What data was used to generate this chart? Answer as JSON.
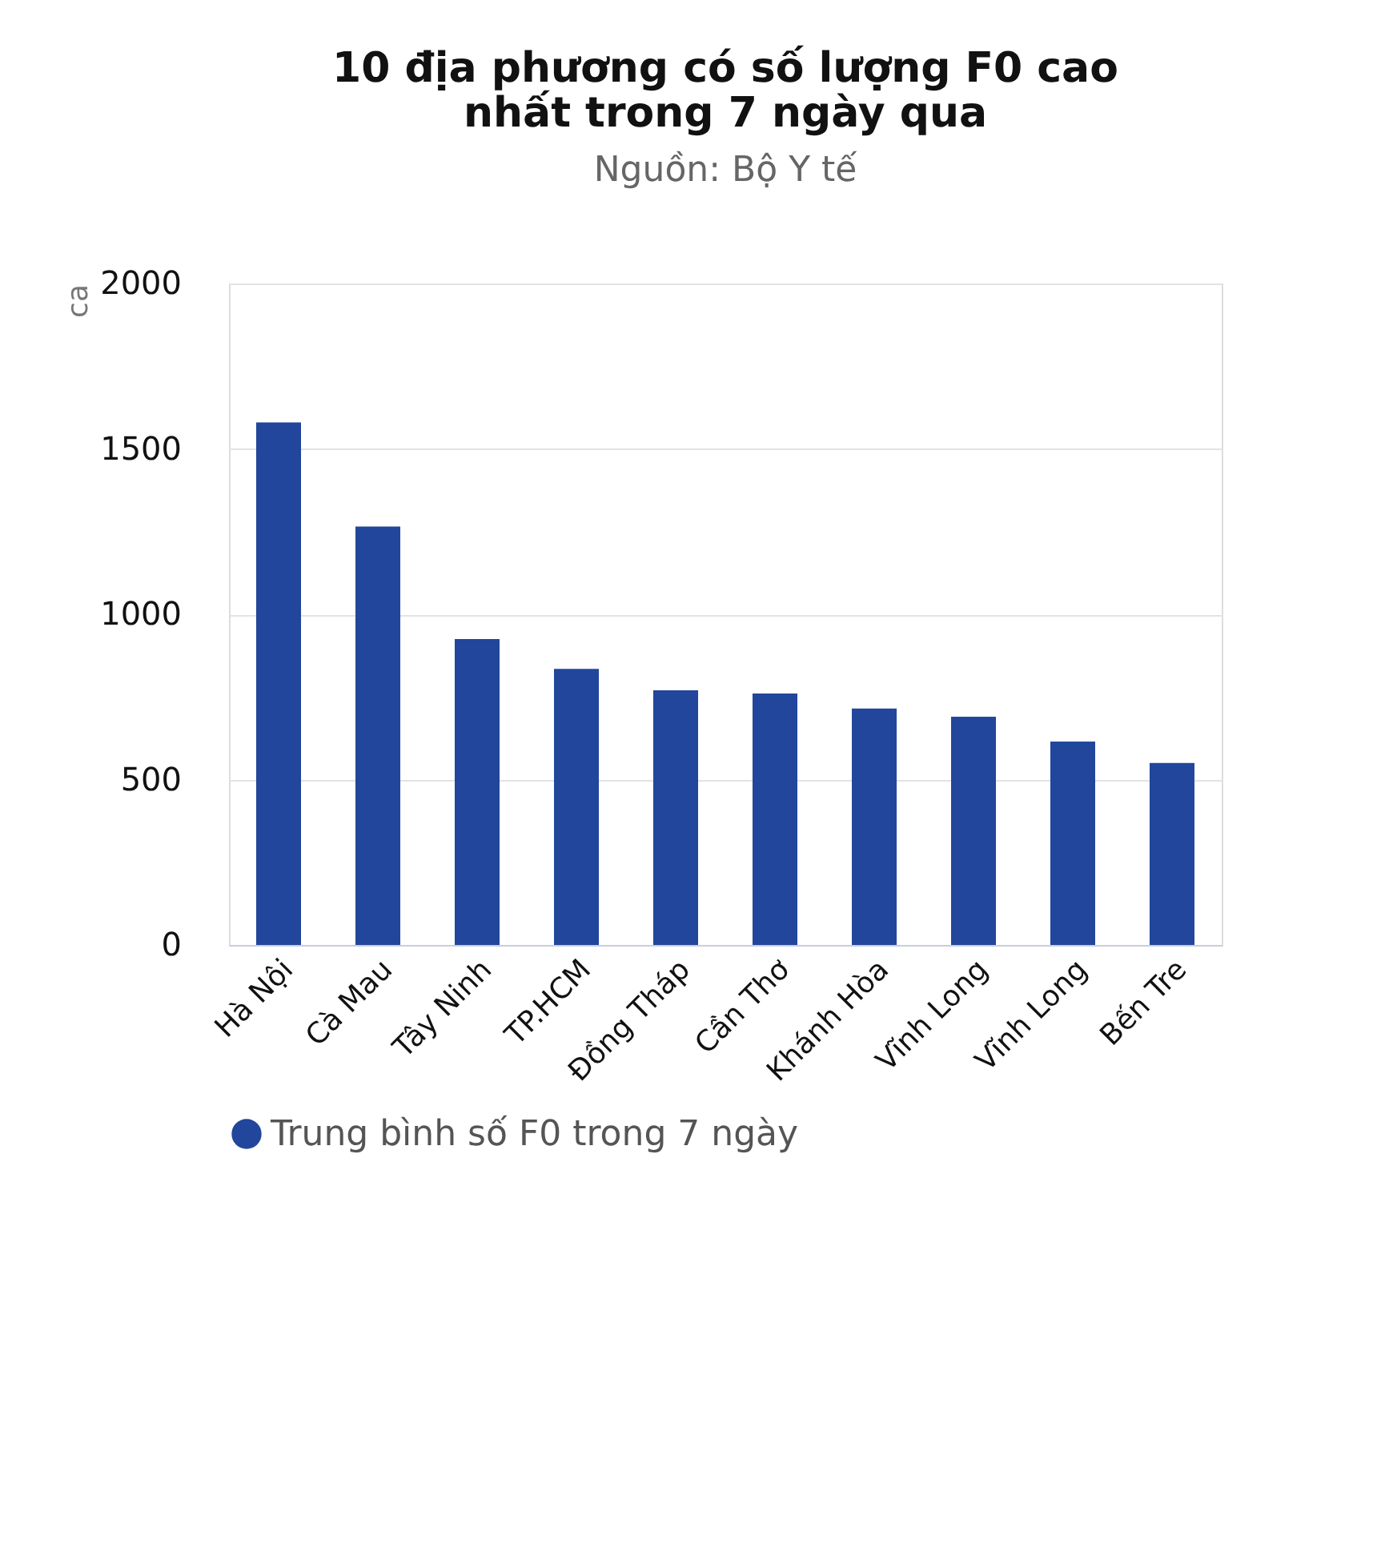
{
  "chart_data": {
    "type": "bar",
    "title": "10 địa phương có số lượng F0 cao nhất trong 7 ngày qua",
    "subtitle": "Nguồn: Bộ Y tế",
    "ylabel": "ca",
    "categories": [
      "Hà Nội",
      "Cà Mau",
      "Tây Ninh",
      "TP.HCM",
      "Đồng Tháp",
      "Cần Thơ",
      "Khánh Hòa",
      "Vĩnh Long",
      "Vĩnh Long",
      "Bến Tre"
    ],
    "series": [
      {
        "name": "Trung bình số F0 trong 7 ngày",
        "color": "#21469b",
        "values": [
          1580,
          1265,
          925,
          835,
          770,
          760,
          715,
          690,
          615,
          550
        ]
      }
    ],
    "ylim": [
      0,
      2000
    ],
    "yticks": [
      0,
      500,
      1000,
      1500,
      2000
    ],
    "grid": "y",
    "legend": "bottom"
  }
}
